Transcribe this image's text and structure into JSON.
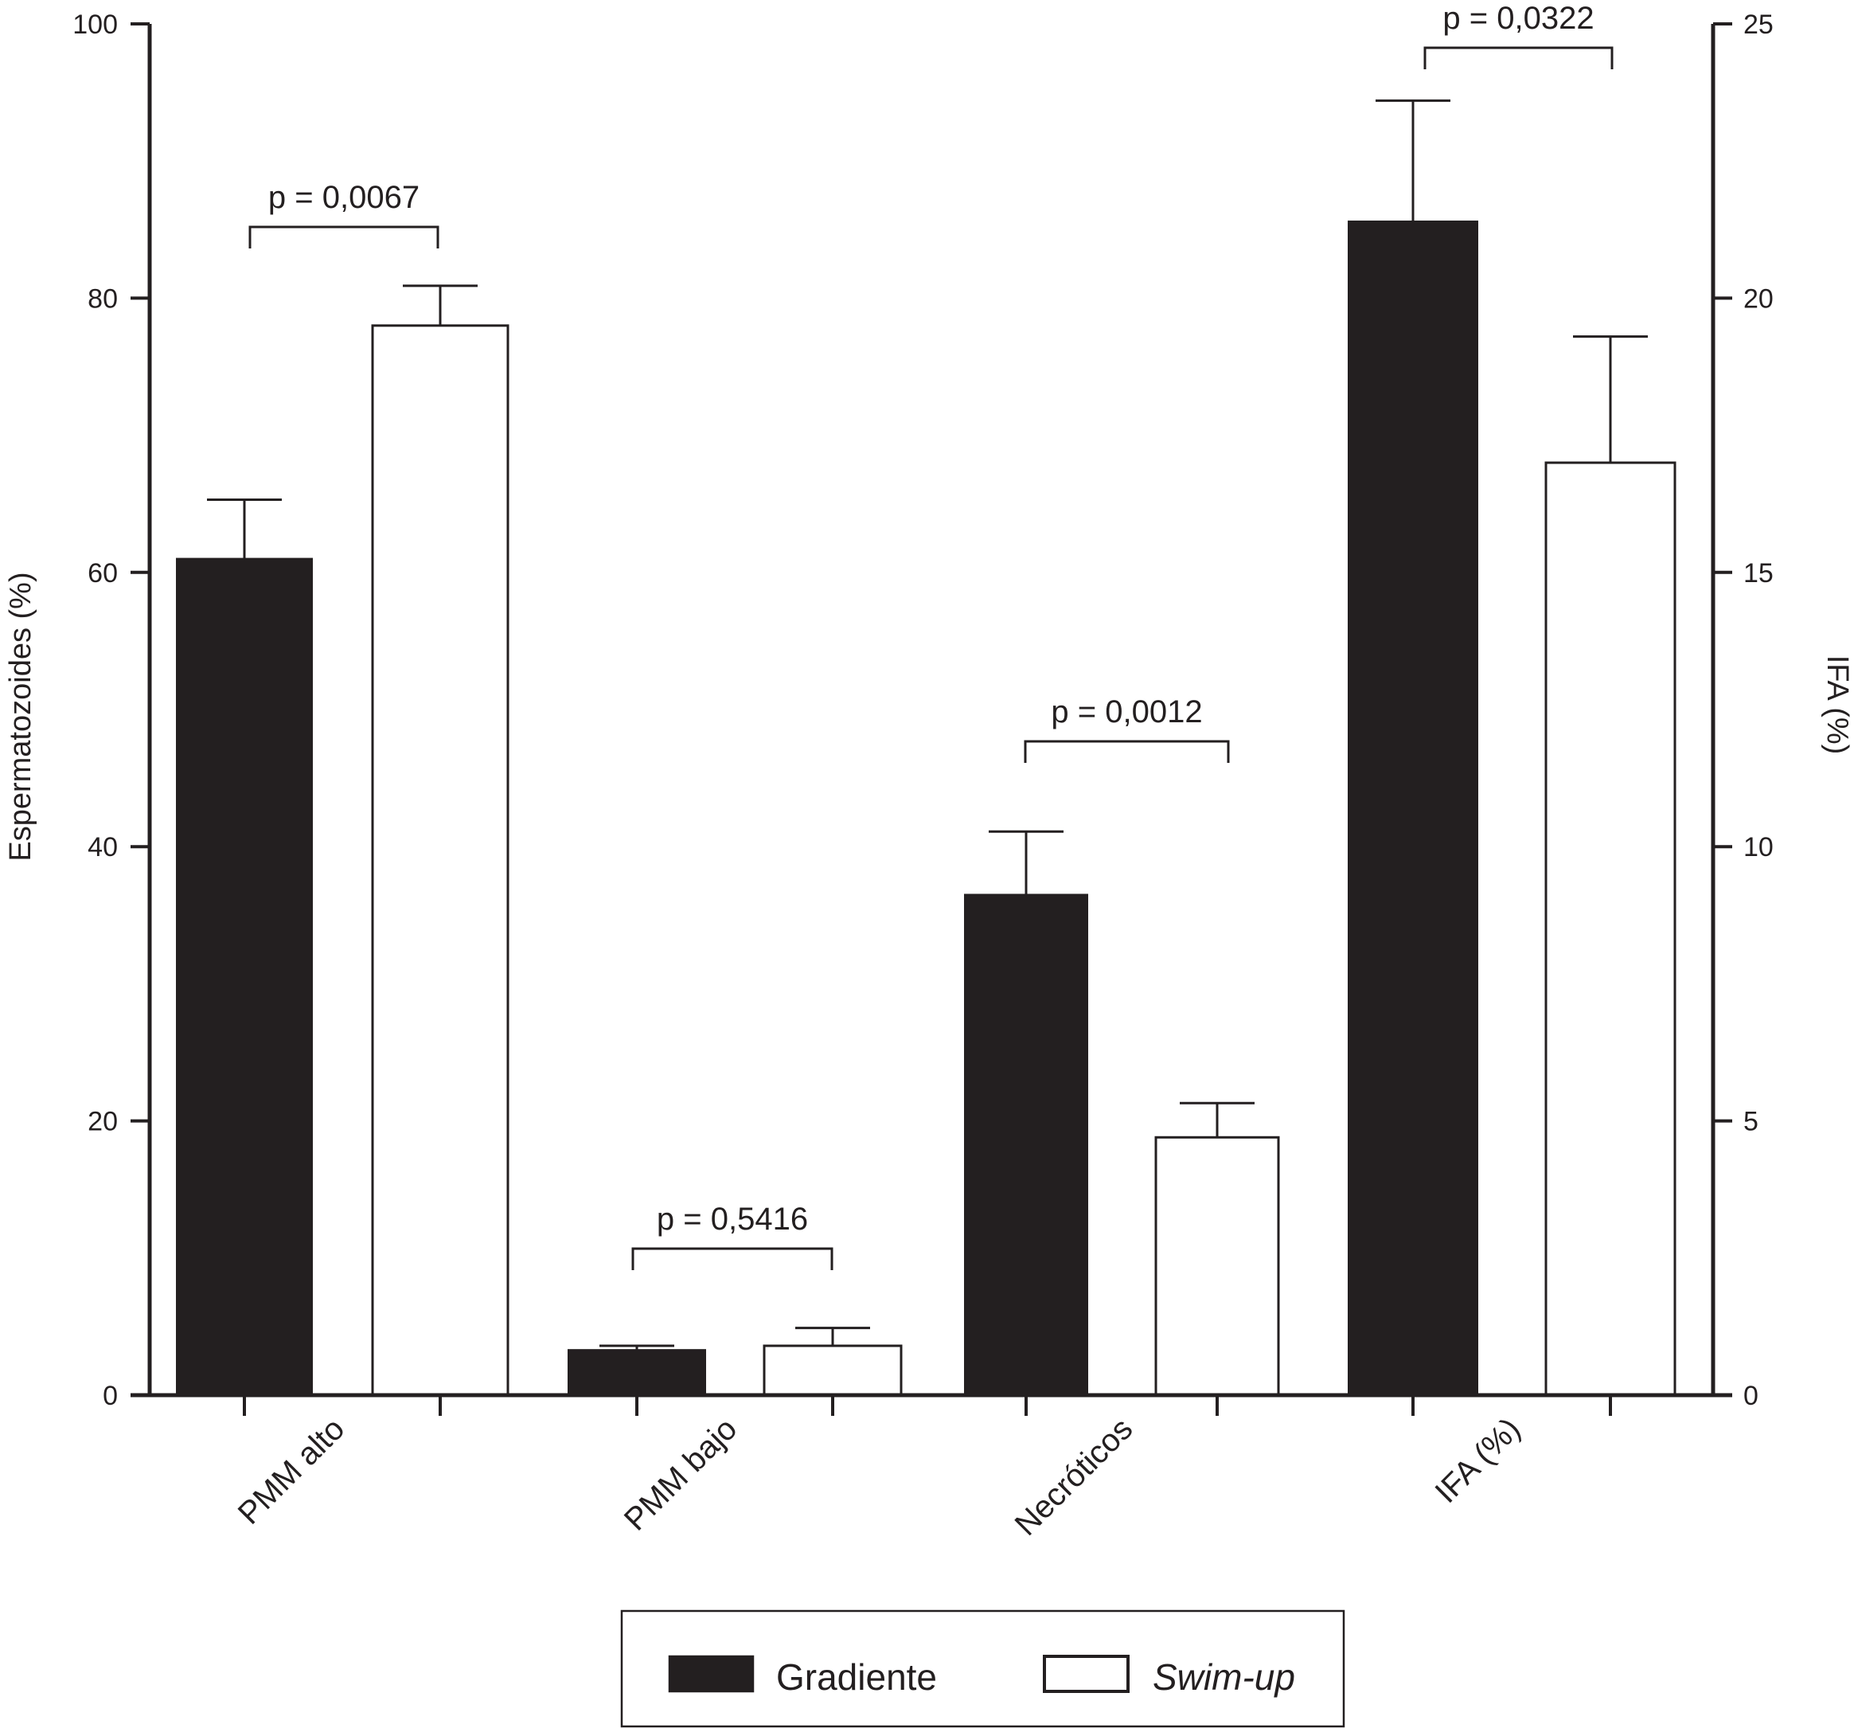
{
  "chart_data": {
    "type": "bar",
    "categories": [
      "PMM alto",
      "PMM bajo",
      "Necróticos",
      "IFA (%)"
    ],
    "series": [
      {
        "name": "Gradiente",
        "values": [
          61,
          3.3,
          36.5,
          21.4
        ],
        "errors": [
          4.3,
          0.3,
          4.6,
          2.2
        ],
        "color": "#231f20",
        "fill": "#231f20"
      },
      {
        "name": "Swim-up",
        "values": [
          78,
          3.6,
          18.8,
          17
        ],
        "errors": [
          2.9,
          1.3,
          2.5,
          2.3
        ],
        "color": "#231f20",
        "fill": "#ffffff"
      }
    ],
    "axis_assignment": [
      "left",
      "left",
      "left",
      "right"
    ],
    "ylabel": "Espermatozoides (%)",
    "ylim": [
      0,
      100
    ],
    "yticks": [
      "0",
      "20",
      "40",
      "60",
      "80",
      "100"
    ],
    "y2label": "IFA (%)",
    "y2lim": [
      0,
      25
    ],
    "y2ticks": [
      "0",
      "5",
      "10",
      "15",
      "20",
      "25"
    ],
    "annotations": [
      "p = 0,0067",
      "p = 0,5416",
      "p = 0,0012",
      "p = 0,0322"
    ],
    "grid": false,
    "legend_position": "bottom-center"
  },
  "legend": {
    "items": [
      {
        "label": "Gradiente",
        "fill": "#231f20"
      },
      {
        "label": "Swim-up",
        "fill": "#ffffff"
      }
    ]
  }
}
